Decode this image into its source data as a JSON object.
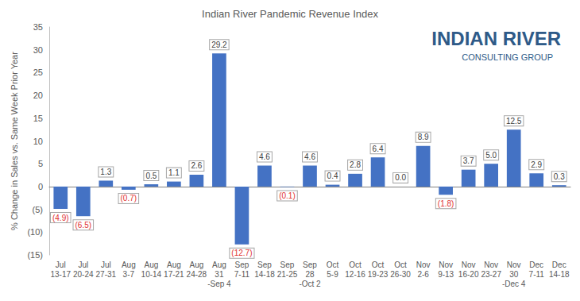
{
  "chart_data": {
    "type": "bar",
    "title": "Indian River Pandemic Revenue Index",
    "y_label": "% Change in Sales vs. Same Week Prior Year",
    "annotations": [
      "INDIAN RIVER",
      "CONSULTING GROUP"
    ],
    "categories": [
      "Jul\n13-17",
      "Jul\n20-24",
      "Jul\n27-31",
      "Aug\n3-7",
      "Aug\n10-14",
      "Aug\n17-21",
      "Aug\n24-28",
      "Aug\n31\n-Sep 4",
      "Sep\n7-11",
      "Sep\n14-18",
      "Sep\n21-25",
      "Sep\n28\n-Oct 2",
      "Oct\n5-9",
      "Oct\n12-16",
      "Oct\n19-23",
      "Oct\n26-30",
      "Nov\n2-6",
      "Nov\n9-13",
      "Nov\n16-20",
      "Nov\n23-27",
      "Nov\n30\n-Dec 4",
      "Dec\n7-11",
      "Dec\n14-18"
    ],
    "values": [
      -4.9,
      -6.5,
      1.3,
      -0.7,
      0.5,
      1.1,
      2.6,
      29.2,
      -12.7,
      4.6,
      -0.1,
      4.6,
      0.4,
      2.8,
      6.4,
      0.0,
      8.9,
      -1.8,
      3.7,
      5.0,
      12.5,
      2.9,
      0.3
    ],
    "value_labels": [
      "(4.9)",
      "(6.5)",
      "1.3",
      "(0.7)",
      "0.5",
      "1.1",
      "2.6",
      "29.2",
      "(12.7)",
      "4.6",
      "(0.1)",
      "4.6",
      "0.4",
      "2.8",
      "6.4",
      "0.0",
      "8.9",
      "(1.8)",
      "3.7",
      "5.0",
      "12.5",
      "2.9",
      "0.3"
    ],
    "color": "#4472c4",
    "ylim": [
      -15,
      35
    ],
    "yticks": [
      {
        "value": -15,
        "label": "(15)"
      },
      {
        "value": -10,
        "label": "(10)"
      },
      {
        "value": -5,
        "label": "(5)"
      },
      0,
      5,
      10,
      15,
      20,
      25,
      30,
      35
    ],
    "grid": false,
    "data_labels": true
  }
}
